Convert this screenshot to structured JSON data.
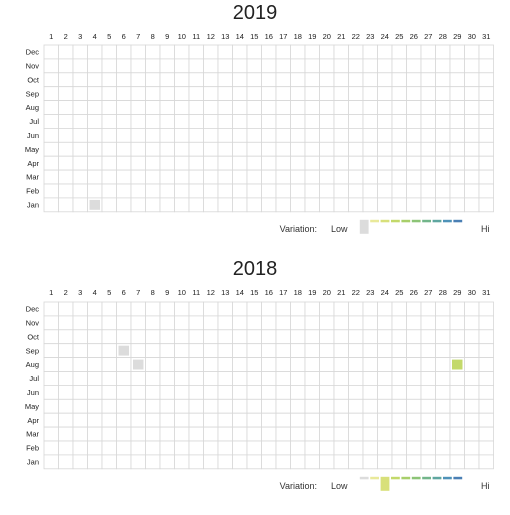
{
  "chart_data": [
    {
      "type": "heatmap",
      "title": "2019",
      "x_categories": [
        "1",
        "2",
        "3",
        "4",
        "5",
        "6",
        "7",
        "8",
        "9",
        "10",
        "11",
        "12",
        "13",
        "14",
        "15",
        "16",
        "17",
        "18",
        "19",
        "20",
        "21",
        "22",
        "23",
        "24",
        "25",
        "26",
        "27",
        "28",
        "29",
        "30",
        "31"
      ],
      "y_categories": [
        "Dec",
        "Nov",
        "Oct",
        "Sep",
        "Aug",
        "Jul",
        "Jun",
        "May",
        "Apr",
        "Mar",
        "Feb",
        "Jan"
      ],
      "y_tick_labels": [
        "Dec",
        "Nov",
        "Oct",
        "Sep",
        "Aug",
        "Jul",
        "Jun",
        "May",
        "Apr",
        "Mar",
        "Feb",
        "Jan"
      ],
      "highlighted_cells": [
        {
          "month": "Jan",
          "day": 4,
          "level": 0
        }
      ],
      "legend": {
        "label": "Variation:",
        "low": "Low",
        "high": "Hi",
        "indicator_level": 0
      }
    },
    {
      "type": "heatmap",
      "title": "2018",
      "x_categories": [
        "1",
        "2",
        "3",
        "4",
        "5",
        "6",
        "7",
        "8",
        "9",
        "10",
        "11",
        "12",
        "13",
        "14",
        "15",
        "16",
        "17",
        "18",
        "19",
        "20",
        "21",
        "22",
        "23",
        "24",
        "25",
        "26",
        "27",
        "28",
        "29",
        "30",
        "31"
      ],
      "y_categories": [
        "Dec",
        "Nov",
        "Oct",
        "Sep",
        "Aug",
        "Jul",
        "Jun",
        "May",
        "Apr",
        "Mar",
        "Feb",
        "Jan"
      ],
      "y_tick_labels": [
        "Dec",
        "Nov",
        "Oct",
        "Sep",
        "Aug",
        "Jul",
        "Jun",
        "May",
        "Apr",
        "Mar",
        "Feb",
        "Jan"
      ],
      "highlighted_cells": [
        {
          "month": "Sep",
          "day": 6,
          "level": 0
        },
        {
          "month": "Aug",
          "day": 7,
          "level": 0
        },
        {
          "month": "Aug",
          "day": 29,
          "level": 3
        }
      ],
      "legend": {
        "label": "Variation:",
        "low": "Low",
        "high": "Hi",
        "indicator_level": 2
      }
    }
  ],
  "colors": {
    "grid_line": "#d7d7d7",
    "empty_cell": "#ffffff",
    "scale": [
      "#dcdcdc",
      "#e9e99a",
      "#d8e07a",
      "#c3d96a",
      "#a8cf6a",
      "#8cc476",
      "#72b58a",
      "#5fa6a0",
      "#4e92b8",
      "#4a7fb4"
    ]
  }
}
